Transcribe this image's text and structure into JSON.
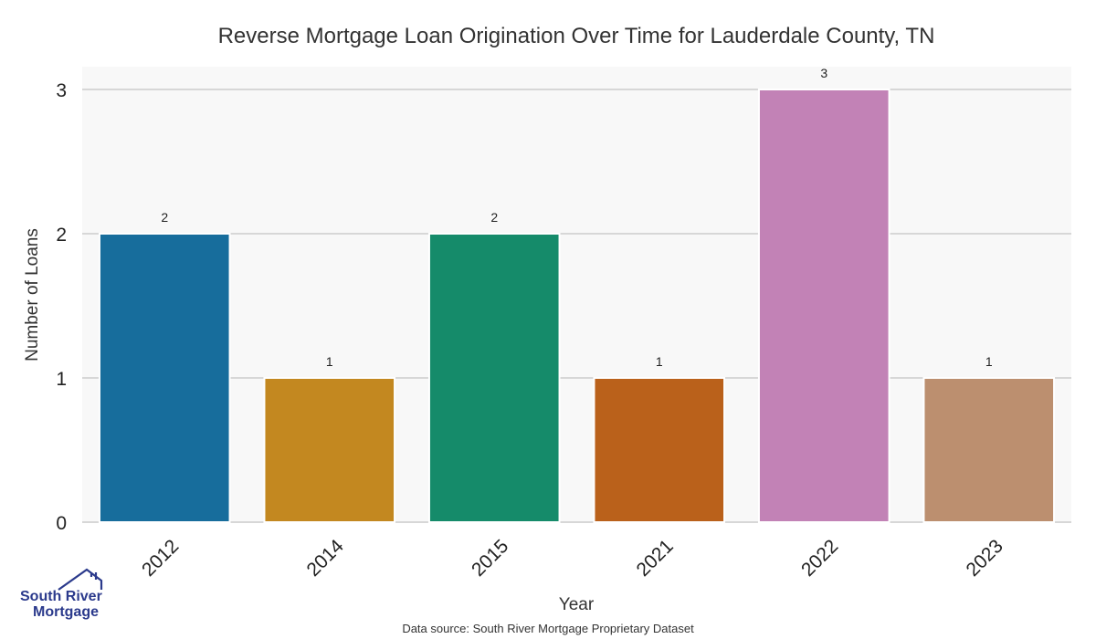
{
  "chart_data": {
    "type": "bar",
    "title": "Reverse Mortgage Loan Origination Over Time for Lauderdale County, TN",
    "xlabel": "Year",
    "ylabel": "Number of Loans",
    "categories": [
      "2012",
      "2014",
      "2015",
      "2021",
      "2022",
      "2023"
    ],
    "values": [
      2,
      1,
      2,
      1,
      3,
      1
    ],
    "colors": [
      "#176d9c",
      "#c38820",
      "#158b6a",
      "#ba611b",
      "#c282b6",
      "#bc8f6f"
    ],
    "ylim": [
      0,
      3
    ],
    "yticks": [
      "0",
      "1",
      "2",
      "3"
    ],
    "grid": true,
    "plot_background": "#f8f8f8",
    "grid_color": "#cccccc"
  },
  "logo": {
    "line1": "South River",
    "line2": "Mortgage",
    "icon": "house-roof-icon",
    "color": "#2b3a8c"
  },
  "source_note": "Data source: South River Mortgage Proprietary Dataset"
}
